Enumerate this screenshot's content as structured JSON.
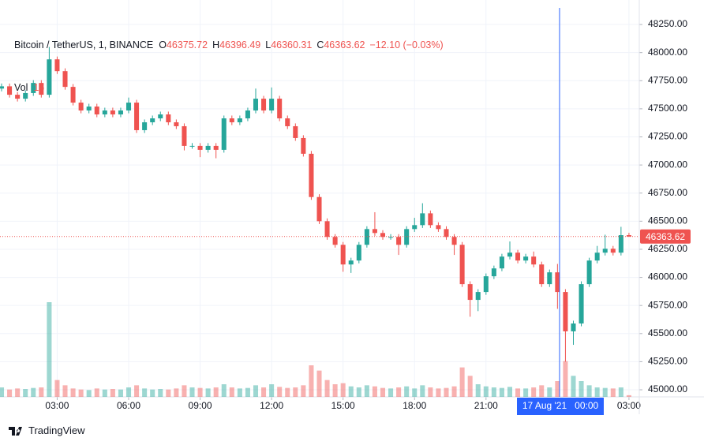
{
  "chart_data": {
    "type": "candlestick",
    "symbol": "Bitcoin / TetherUS, 1, BINANCE",
    "ohlc_labels": [
      "O",
      "H",
      "L",
      "C"
    ],
    "change": "−12.10 (−0.03%)",
    "volume_label": "Vol",
    "crosshair_label": "17 Aug '21   00:00",
    "brand": "TradingView",
    "up_color": "#26a69a",
    "down_color": "#ef5350",
    "grid": true,
    "x": [
      40,
      60,
      80,
      100,
      120,
      140,
      160,
      180,
      200,
      220,
      240,
      260,
      280,
      300,
      320,
      340,
      360,
      380,
      400,
      420,
      440,
      460,
      480,
      500,
      520,
      540,
      560,
      580,
      600,
      620,
      640,
      660,
      680,
      700,
      720,
      740,
      760,
      780,
      800,
      820,
      840,
      860,
      880,
      900,
      920,
      940,
      960,
      980,
      1000,
      1020,
      1040,
      1060,
      1080,
      1100,
      1120,
      1140,
      1160,
      1180,
      1200,
      1220,
      1240,
      1260,
      1280,
      1300,
      1320,
      1340,
      1360,
      1380,
      1400,
      1420,
      1440,
      1460,
      1480,
      1500,
      1520,
      1540,
      1560,
      1580,
      1600,
      1620
    ],
    "open": [
      47680,
      47700,
      47625,
      47590,
      47640,
      47730,
      47625,
      47940,
      47835,
      47695,
      47555,
      47485,
      47520,
      47450,
      47485,
      47450,
      47485,
      47555,
      47310,
      47380,
      47415,
      47450,
      47380,
      47345,
      47170,
      47170,
      47135,
      47170,
      47135,
      47415,
      47380,
      47415,
      47485,
      47590,
      47485,
      47590,
      47415,
      47345,
      47240,
      47100,
      46715,
      46500,
      46360,
      46290,
      46115,
      46150,
      46290,
      46430,
      46395,
      46360,
      46360,
      46290,
      46430,
      46465,
      46570,
      46465,
      46430,
      46360,
      46290,
      45940,
      45800,
      45870,
      46010,
      46080,
      46185,
      46220,
      46150,
      46185,
      46115,
      45940,
      46045,
      45870,
      45520,
      45590,
      45940,
      46150,
      46220,
      46255,
      46220,
      46375.72
    ],
    "high": [
      47725,
      47725,
      47650,
      47665,
      47755,
      47755,
      48050,
      47965,
      47860,
      47720,
      47580,
      47545,
      47545,
      47510,
      47510,
      47510,
      47600,
      47580,
      47405,
      47440,
      47475,
      47475,
      47405,
      47370,
      47195,
      47195,
      47195,
      47195,
      47440,
      47440,
      47440,
      47510,
      47680,
      47615,
      47690,
      47615,
      47440,
      47370,
      47265,
      47125,
      46740,
      46525,
      46385,
      46315,
      46175,
      46315,
      46455,
      46580,
      46420,
      46385,
      46385,
      46455,
      46530,
      46660,
      46595,
      46490,
      46455,
      46385,
      46315,
      45965,
      45895,
      46035,
      46105,
      46210,
      46320,
      46245,
      46210,
      46230,
      46140,
      46070,
      46120,
      45895,
      45615,
      45965,
      46175,
      46280,
      46380,
      46280,
      46450,
      46396.49
    ],
    "low": [
      47655,
      47600,
      47565,
      47565,
      47615,
      47600,
      47600,
      47810,
      47670,
      47530,
      47460,
      47460,
      47425,
      47425,
      47425,
      47425,
      47460,
      47285,
      47285,
      47355,
      47390,
      47355,
      47320,
      47130,
      47145,
      47070,
      47110,
      47060,
      47110,
      47355,
      47355,
      47390,
      47460,
      47460,
      47460,
      47390,
      47320,
      47215,
      47075,
      46690,
      46475,
      46335,
      46265,
      46050,
      46040,
      46125,
      46265,
      46370,
      46335,
      46335,
      46200,
      46265,
      46405,
      46440,
      46440,
      46405,
      46335,
      46200,
      45915,
      45650,
      45700,
      45845,
      45985,
      46055,
      46160,
      46125,
      46125,
      46090,
      45915,
      45915,
      45720,
      45250,
      45400,
      45565,
      45915,
      46125,
      46195,
      46195,
      46195,
      46360.31
    ],
    "close": [
      47700,
      47625,
      47590,
      47640,
      47730,
      47625,
      47940,
      47835,
      47695,
      47555,
      47485,
      47520,
      47450,
      47485,
      47450,
      47485,
      47555,
      47310,
      47380,
      47415,
      47450,
      47380,
      47345,
      47170,
      47170,
      47135,
      47170,
      47135,
      47415,
      47380,
      47415,
      47485,
      47590,
      47485,
      47590,
      47415,
      47345,
      47240,
      47100,
      46715,
      46500,
      46360,
      46290,
      46115,
      46150,
      46290,
      46430,
      46395,
      46360,
      46360,
      46290,
      46430,
      46465,
      46570,
      46465,
      46430,
      46360,
      46290,
      45940,
      45800,
      45870,
      46010,
      46080,
      46185,
      46220,
      46150,
      46185,
      46115,
      45940,
      46045,
      45870,
      45520,
      45590,
      45940,
      46150,
      46220,
      46255,
      46220,
      46375.72,
      46363.62
    ],
    "volume": [
      90,
      70,
      80,
      75,
      85,
      90,
      900,
      160,
      110,
      80,
      70,
      65,
      80,
      70,
      75,
      70,
      90,
      110,
      80,
      70,
      75,
      70,
      80,
      110,
      90,
      85,
      80,
      90,
      120,
      90,
      80,
      85,
      110,
      90,
      120,
      95,
      85,
      90,
      110,
      300,
      250,
      160,
      120,
      130,
      100,
      90,
      110,
      100,
      85,
      80,
      90,
      100,
      80,
      110,
      90,
      80,
      85,
      100,
      280,
      200,
      120,
      100,
      90,
      85,
      95,
      80,
      80,
      90,
      110,
      90,
      150,
      340,
      200,
      150,
      110,
      90,
      85,
      80,
      90,
      16
    ],
    "volume_ylim": [
      0,
      1200
    ],
    "xlim": [
      36,
      1646
    ],
    "ylim": [
      44937,
      48468
    ],
    "xticks": [
      {
        "value": 180,
        "label": "03:00"
      },
      {
        "value": 360,
        "label": "06:00"
      },
      {
        "value": 540,
        "label": "09:00"
      },
      {
        "value": 720,
        "label": "12:00"
      },
      {
        "value": 900,
        "label": "15:00"
      },
      {
        "value": 1080,
        "label": "18:00"
      },
      {
        "value": 1260,
        "label": "21:00"
      },
      {
        "value": 1620,
        "label": "03:00"
      }
    ],
    "yticks": [
      {
        "value": 45000,
        "label": "45000.00"
      },
      {
        "value": 45250,
        "label": "45250.00"
      },
      {
        "value": 45500,
        "label": "45500.00"
      },
      {
        "value": 45750,
        "label": "45750.00"
      },
      {
        "value": 46000,
        "label": "46000.00"
      },
      {
        "value": 46250,
        "label": "46250.00"
      },
      {
        "value": 46500,
        "label": "46500.00"
      },
      {
        "value": 46750,
        "label": "46750.00"
      },
      {
        "value": 47000,
        "label": "47000.00"
      },
      {
        "value": 47250,
        "label": "47250.00"
      },
      {
        "value": 47500,
        "label": "47500.00"
      },
      {
        "value": 47750,
        "label": "47750.00"
      },
      {
        "value": 48000,
        "label": "48000.00"
      },
      {
        "value": 48250,
        "label": "48250.00"
      }
    ]
  }
}
